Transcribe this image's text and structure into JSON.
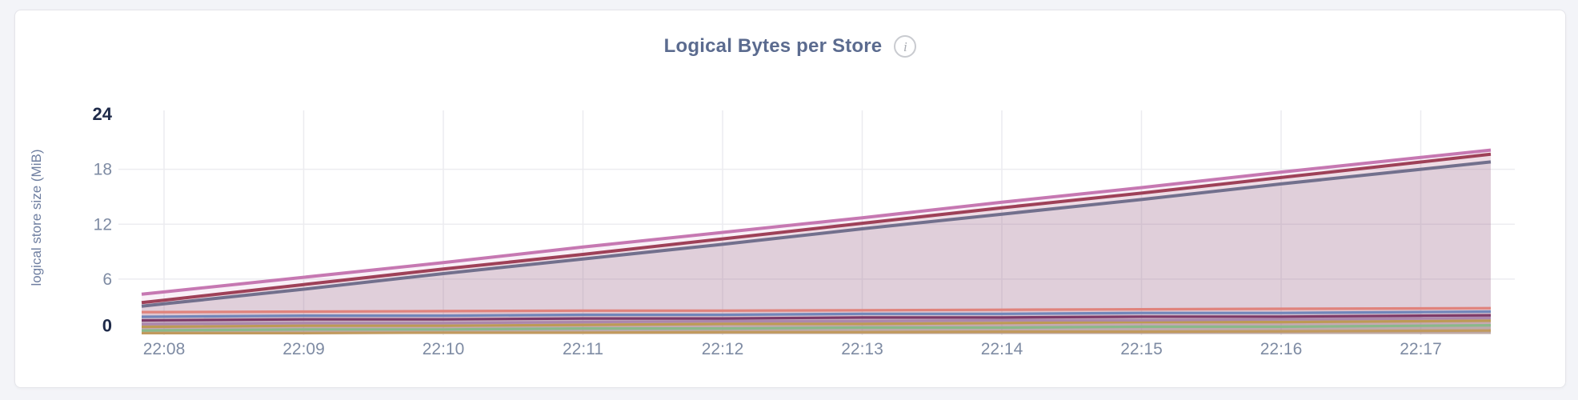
{
  "header": {
    "title": "Logical Bytes per Store",
    "info_glyph": "i"
  },
  "colors": {
    "page_background": "#f3f4f8",
    "card_background": "#ffffff",
    "card_border": "#e5e5ea",
    "title_text": "#5b6b8f",
    "tick_text": "#7e8ba3",
    "tick_text_emphasis": "#1e2a49",
    "gridline": "#ececf0"
  },
  "chart_data": {
    "type": "area",
    "title": "Logical Bytes per Store",
    "xlabel": "",
    "ylabel": "logical store size (MiB)",
    "ylim": [
      0,
      24
    ],
    "y_ticks": [
      0,
      6,
      12,
      18,
      24
    ],
    "y_ticks_emphasized": [
      0,
      24
    ],
    "grid": true,
    "legend_position": "none",
    "x_ticks": [
      "22:08",
      "22:09",
      "22:10",
      "22:11",
      "22:12",
      "22:13",
      "22:14",
      "22:15",
      "22:16",
      "22:17"
    ],
    "series": [
      {
        "id": "store-1",
        "color": "#c678b2",
        "fill_opacity": 0.11,
        "values": [
          4.6,
          6.2,
          7.8,
          9.5,
          11.1,
          12.7,
          14.4,
          16.0,
          17.7,
          19.3
        ]
      },
      {
        "id": "store-2",
        "color": "#9e4158",
        "fill_opacity": 0.11,
        "values": [
          3.7,
          5.4,
          7.1,
          8.7,
          10.4,
          12.1,
          13.8,
          15.4,
          17.1,
          18.8
        ]
      },
      {
        "id": "store-3",
        "color": "#72708d",
        "fill_opacity": 0.11,
        "values": [
          3.3,
          4.9,
          6.6,
          8.2,
          9.8,
          11.5,
          13.1,
          14.7,
          16.4,
          18.0
        ]
      },
      {
        "id": "store-4",
        "color": "#e0837c",
        "fill_opacity": 0.11,
        "values": [
          2.4,
          2.45,
          2.5,
          2.55,
          2.55,
          2.6,
          2.65,
          2.7,
          2.75,
          2.8
        ]
      },
      {
        "id": "store-5",
        "color": "#7186ba",
        "fill_opacity": 0.11,
        "values": [
          1.9,
          2.0,
          2.0,
          2.1,
          2.1,
          2.2,
          2.2,
          2.3,
          2.3,
          2.4
        ]
      },
      {
        "id": "store-6",
        "color": "#7d3a68",
        "fill_opacity": 0.11,
        "values": [
          1.5,
          1.6,
          1.6,
          1.7,
          1.7,
          1.8,
          1.8,
          1.9,
          1.9,
          2.0
        ]
      },
      {
        "id": "store-7",
        "color": "#ab87ad",
        "fill_opacity": 0.11,
        "values": [
          1.1,
          1.2,
          1.2,
          1.3,
          1.4,
          1.4,
          1.5,
          1.5,
          1.6,
          1.7
        ]
      },
      {
        "id": "store-8",
        "color": "#bd9a55",
        "fill_opacity": 0.11,
        "values": [
          0.8,
          0.9,
          0.9,
          1.0,
          1.1,
          1.1,
          1.2,
          1.3,
          1.3,
          1.4
        ]
      },
      {
        "id": "store-9",
        "color": "#8ab88a",
        "fill_opacity": 0.11,
        "values": [
          0.4,
          0.5,
          0.5,
          0.6,
          0.6,
          0.7,
          0.7,
          0.8,
          0.8,
          0.9
        ]
      },
      {
        "id": "store-10",
        "color": "#c19a5e",
        "fill_opacity": 0.11,
        "values": [
          0.1,
          0.1,
          0.15,
          0.15,
          0.2,
          0.2,
          0.25,
          0.25,
          0.3,
          0.35
        ]
      }
    ]
  }
}
